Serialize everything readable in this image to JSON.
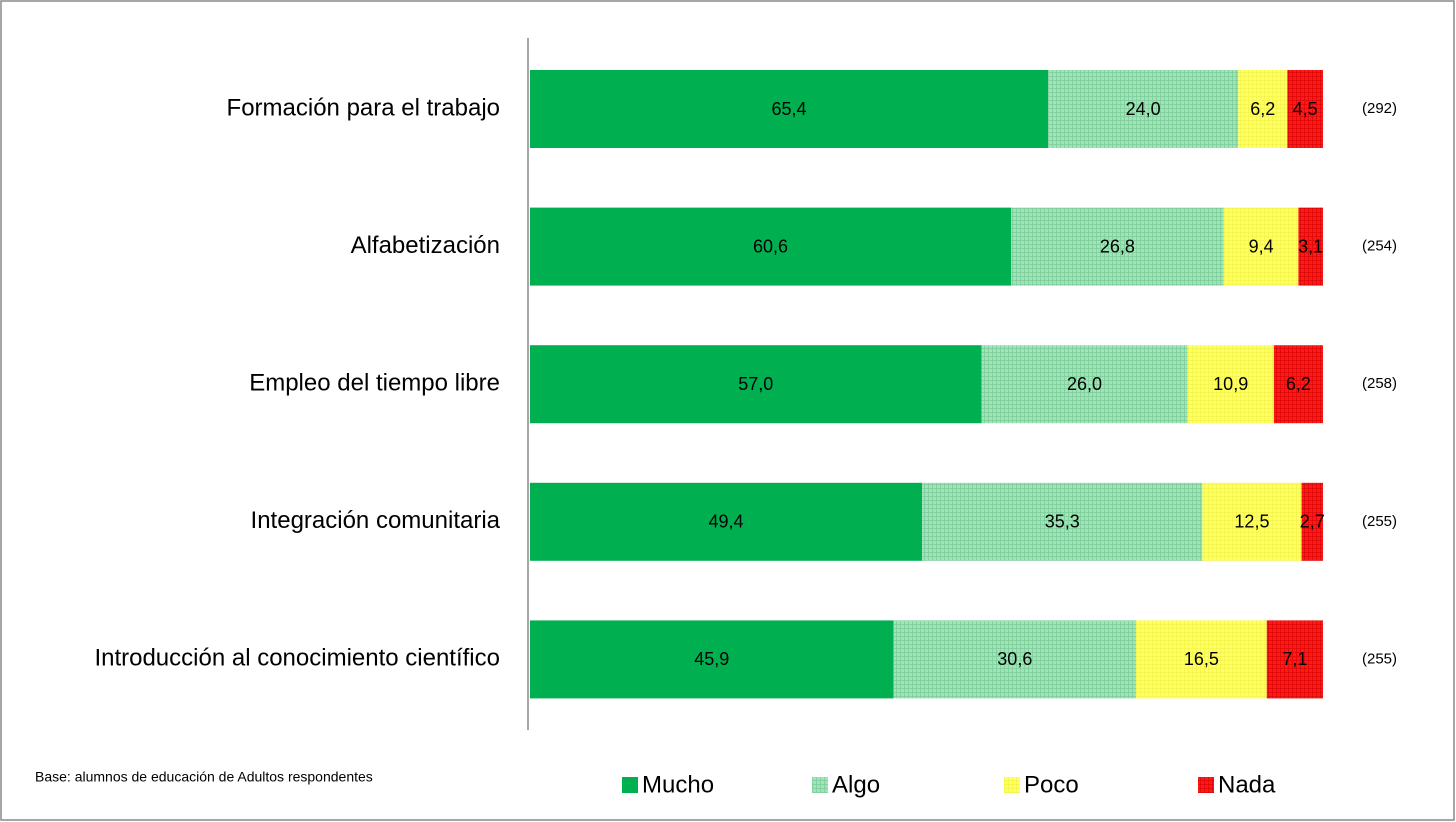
{
  "chart_data": {
    "type": "stacked-bar-horizontal",
    "categories": [
      "Formación para el trabajo",
      "Alfabetización",
      "Empleo del tiempo libre",
      "Integración comunitaria",
      "Introducción al conocimiento científico"
    ],
    "series": [
      {
        "name": "Mucho",
        "color": "#00b050",
        "values": [
          65.4,
          60.6,
          57.0,
          49.4,
          45.9
        ],
        "value_labels": [
          "65,4",
          "60,6",
          "57,0",
          "49,4",
          "45,9"
        ]
      },
      {
        "name": "Algo",
        "color": "#a0e4b8",
        "values": [
          24.0,
          26.8,
          26.0,
          35.3,
          30.6
        ],
        "value_labels": [
          "24,0",
          "26,8",
          "26,0",
          "35,3",
          "30,6"
        ]
      },
      {
        "name": "Poco",
        "color": "#ffff66",
        "values": [
          6.2,
          9.4,
          10.9,
          12.5,
          16.5
        ],
        "value_labels": [
          "6,2",
          "9,4",
          "10,9",
          "12,5",
          "16,5"
        ]
      },
      {
        "name": "Nada",
        "color": "#ff1a1a",
        "values": [
          4.5,
          3.1,
          6.2,
          2.7,
          7.1
        ],
        "value_labels": [
          "4,5",
          "3,1",
          "6,2",
          "2,7",
          "7,1"
        ]
      }
    ],
    "sample_sizes": [
      "(292)",
      "(254)",
      "(258)",
      "(255)",
      "(255)"
    ],
    "note": "Base: alumnos de educación de Adultos respondentes",
    "legend": "bottom"
  }
}
